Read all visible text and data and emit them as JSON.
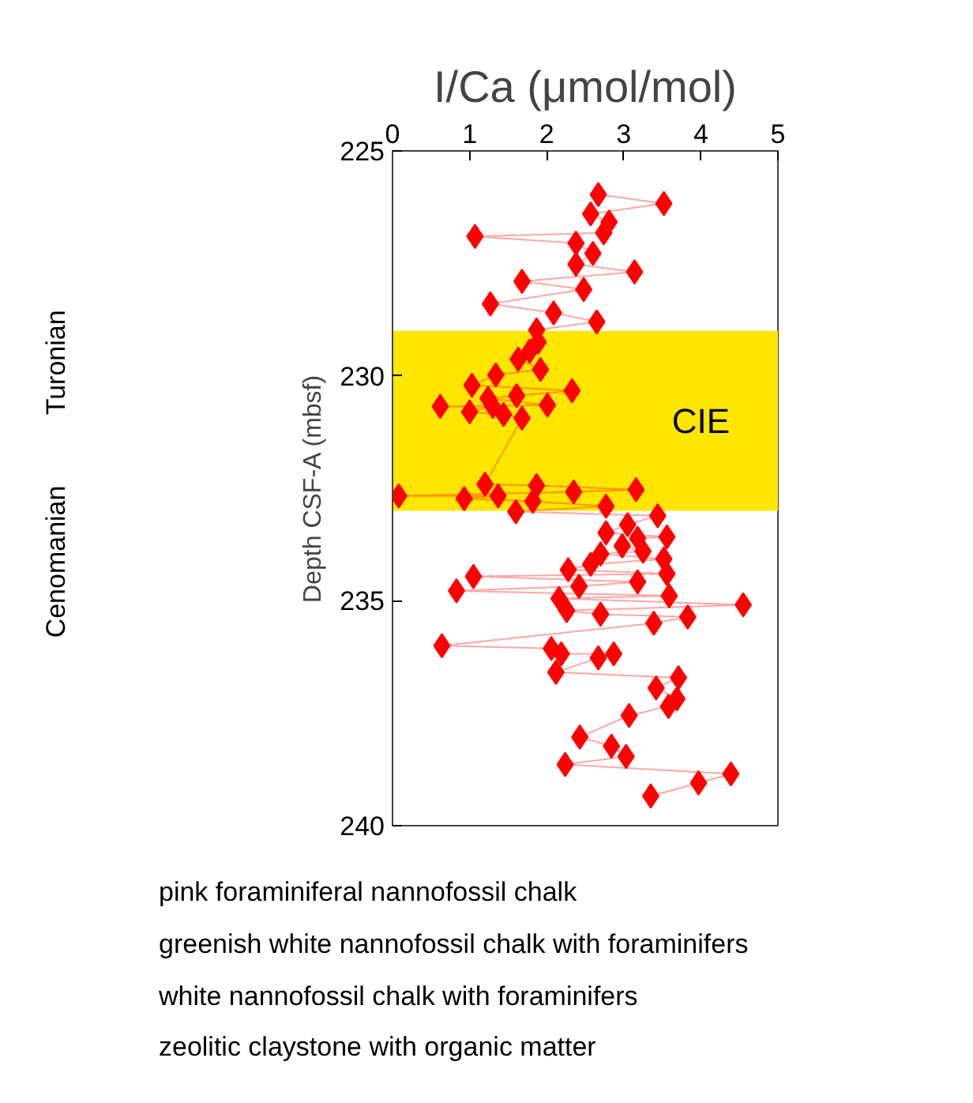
{
  "chart_data": {
    "type": "line",
    "xlabel": "I/Ca (μmol/mol)",
    "ylabel": "Depth CSF-A (mbsf)",
    "marker": "diamond",
    "line_style": "solid",
    "grid": false,
    "xlim": [
      0,
      5
    ],
    "xticks": [
      0,
      1,
      2,
      3,
      4,
      5
    ],
    "ylim": [
      240,
      225
    ],
    "yticks": [
      225,
      230,
      235,
      240
    ],
    "bands": [
      {
        "axis": "y",
        "from": 229,
        "to": 233,
        "label": "CIE",
        "color": "#ffe600"
      }
    ],
    "annotations": [
      "Turonian",
      "Cenomanian",
      "pink foraminiferal nannofossil chalk",
      "greenish white nannofossil chalk with foraminifers",
      "white nannofossil chalk with foraminifers",
      "zeolitic claystone with organic matter"
    ],
    "series": [
      {
        "color": "#ff0000",
        "values": [
          225.97,
          226.17,
          226.4,
          226.58,
          226.82,
          226.9,
          227.05,
          227.28,
          227.52,
          227.69,
          227.9,
          228.08,
          228.4,
          228.6,
          228.8,
          228.98,
          229.25,
          229.45,
          229.63,
          229.86,
          229.98,
          230.21,
          230.33,
          230.44,
          230.5,
          230.65,
          230.68,
          230.68,
          230.8,
          230.86,
          230.94,
          232.41,
          232.44,
          232.53,
          232.58,
          232.67,
          232.67,
          232.73,
          232.79,
          232.9,
          233.02,
          233.11,
          233.31,
          233.49,
          233.58,
          233.61,
          233.78,
          233.9,
          233.96,
          234.07,
          234.19,
          234.31,
          234.4,
          234.46,
          234.58,
          234.68,
          234.78,
          234.89,
          234.95,
          235.09,
          235.22,
          235.3,
          235.36,
          235.5,
          236.0,
          236.06,
          236.18,
          236.18,
          236.27,
          236.59,
          236.71,
          236.94,
          237.18,
          237.35,
          237.55,
          238.03,
          238.23,
          238.46,
          238.64,
          238.85,
          239.05,
          239.34
        ],
        "x": [
          2.67,
          3.52,
          2.57,
          2.81,
          2.74,
          1.07,
          2.38,
          2.6,
          2.38,
          3.14,
          1.68,
          2.48,
          1.27,
          2.09,
          2.65,
          1.87,
          1.89,
          1.78,
          1.63,
          1.92,
          1.34,
          1.03,
          2.33,
          1.61,
          1.24,
          2.01,
          0.62,
          1.3,
          1.0,
          1.44,
          1.68,
          1.2,
          1.87,
          3.16,
          2.35,
          0.08,
          1.37,
          0.93,
          1.82,
          2.77,
          1.6,
          3.44,
          3.05,
          2.77,
          3.56,
          3.18,
          2.98,
          3.25,
          2.7,
          3.52,
          2.57,
          2.28,
          3.56,
          1.05,
          3.18,
          2.42,
          0.83,
          3.59,
          2.16,
          4.55,
          2.26,
          2.7,
          3.83,
          3.39,
          0.64,
          2.06,
          2.19,
          2.87,
          2.67,
          2.12,
          3.71,
          3.42,
          3.69,
          3.58,
          3.07,
          2.43,
          2.84,
          3.03,
          2.24,
          4.39,
          3.97,
          3.35
        ]
      }
    ]
  }
}
